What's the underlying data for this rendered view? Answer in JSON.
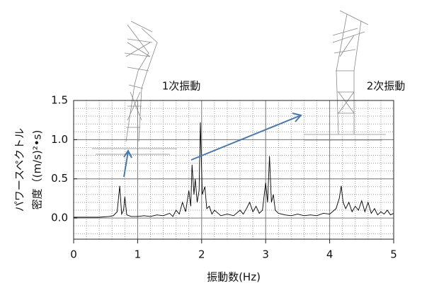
{
  "chart_data": {
    "type": "line",
    "annotations": [
      "1次振動",
      "2次振動"
    ],
    "xlabel": "振動数(Hz)",
    "ylabel": [
      "パワースペクトル",
      "密度（(m/s)²•s)"
    ],
    "x": [
      0,
      0.2,
      0.4,
      0.55,
      0.62,
      0.68,
      0.72,
      0.75,
      0.78,
      0.8,
      0.83,
      0.9,
      1.0,
      1.1,
      1.2,
      1.3,
      1.4,
      1.5,
      1.55,
      1.6,
      1.65,
      1.7,
      1.75,
      1.8,
      1.83,
      1.85,
      1.88,
      1.9,
      1.93,
      1.96,
      1.98,
      2.01,
      2.05,
      2.08,
      2.12,
      2.16,
      2.2,
      2.3,
      2.4,
      2.5,
      2.6,
      2.65,
      2.7,
      2.75,
      2.8,
      2.85,
      2.9,
      2.95,
      3.0,
      3.03,
      3.06,
      3.09,
      3.12,
      3.15,
      3.2,
      3.3,
      3.4,
      3.5,
      3.6,
      3.7,
      3.8,
      3.9,
      4.0,
      4.1,
      4.15,
      4.18,
      4.21,
      4.25,
      4.3,
      4.35,
      4.4,
      4.45,
      4.5,
      4.55,
      4.6,
      4.65,
      4.7,
      4.75,
      4.8,
      4.85,
      4.9,
      4.95,
      5.0
    ],
    "values": [
      0.01,
      0.01,
      0.01,
      0.02,
      0.03,
      0.08,
      0.41,
      0.05,
      0.1,
      0.27,
      0.04,
      0.02,
      0.02,
      0.03,
      0.02,
      0.04,
      0.03,
      0.06,
      0.02,
      0.1,
      0.05,
      0.2,
      0.08,
      0.35,
      0.15,
      0.68,
      0.3,
      0.5,
      0.2,
      0.35,
      1.22,
      0.3,
      0.4,
      0.12,
      0.15,
      0.05,
      0.1,
      0.03,
      0.05,
      0.03,
      0.1,
      0.05,
      0.12,
      0.2,
      0.08,
      0.15,
      0.06,
      0.1,
      0.45,
      0.2,
      0.79,
      0.2,
      0.3,
      0.1,
      0.06,
      0.04,
      0.03,
      0.05,
      0.03,
      0.04,
      0.03,
      0.06,
      0.05,
      0.12,
      0.25,
      0.41,
      0.2,
      0.12,
      0.2,
      0.08,
      0.15,
      0.1,
      0.22,
      0.08,
      0.2,
      0.06,
      0.12,
      0.04,
      0.08,
      0.05,
      0.1,
      0.04,
      0.06
    ],
    "color": "#000000",
    "xlim": [
      0,
      5
    ],
    "xticks": [
      0,
      1,
      2,
      3,
      4,
      5
    ],
    "ylim": [
      -0.27,
      1.5
    ],
    "yticks": [
      {
        "value": 0,
        "label": "0.0"
      },
      0.5,
      {
        "value": 1,
        "label": "1.0"
      },
      1.5
    ],
    "grid": true
  }
}
